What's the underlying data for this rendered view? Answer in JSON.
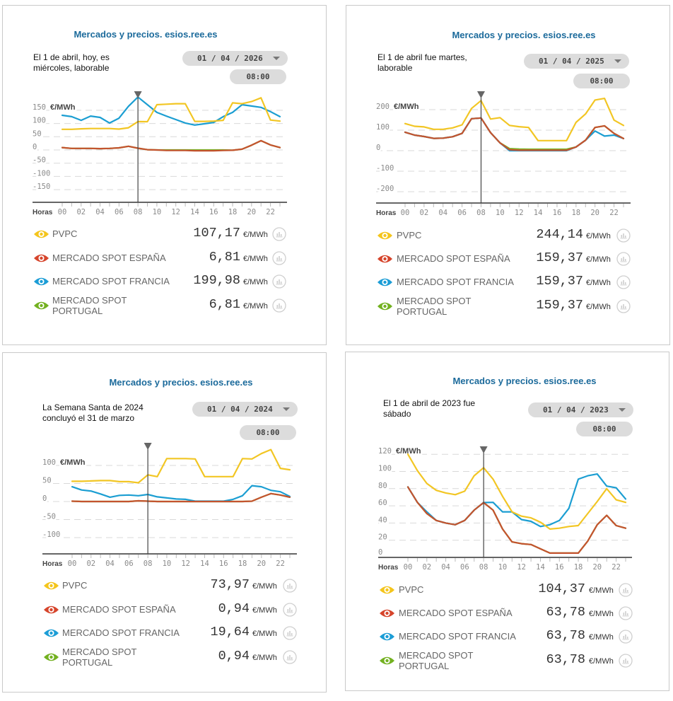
{
  "panels": [
    {
      "title": "Mercados y precios. esios.ree.es",
      "description_lines": [
        "El 1 de abril, hoy, es",
        "miércoles, laborable"
      ],
      "date_select": {
        "value": "01 / 04 / 2026",
        "icon": "chevron-down-icon"
      },
      "time_select": {
        "value": "08:00"
      },
      "legend": [
        {
          "name": "PVPC",
          "value": "107,17",
          "unit": "€/MWh",
          "color": "#f4c51c"
        },
        {
          "name": "MERCADO SPOT ESPAÑA",
          "value": "6,81",
          "unit": "€/MWh",
          "color": "#d6452c"
        },
        {
          "name": "MERCADO SPOT FRANCIA",
          "value": "199,98",
          "unit": "€/MWh",
          "color": "#1c9dd6"
        },
        {
          "name": "MERCADO SPOT PORTUGAL",
          "value": "6,81",
          "unit": "€/MWh",
          "color": "#73b120"
        }
      ]
    },
    {
      "title": "Mercados y precios. esios.ree.es",
      "description_lines": [
        "El 1 de abril fue martes,",
        "laborable"
      ],
      "date_select": {
        "value": "01 / 04 / 2025",
        "icon": "chevron-down-icon"
      },
      "time_select": {
        "value": "08:00"
      },
      "legend": [
        {
          "name": "PVPC",
          "value": "244,14",
          "unit": "€/MWh",
          "color": "#f4c51c"
        },
        {
          "name": "MERCADO SPOT ESPAÑA",
          "value": "159,37",
          "unit": "€/MWh",
          "color": "#d6452c"
        },
        {
          "name": "MERCADO SPOT FRANCIA",
          "value": "159,37",
          "unit": "€/MWh",
          "color": "#1c9dd6"
        },
        {
          "name": "MERCADO SPOT PORTUGAL",
          "value": "159,37",
          "unit": "€/MWh",
          "color": "#73b120"
        }
      ]
    },
    {
      "title": "Mercados y precios. esios.ree.es",
      "description_lines": [
        "La Semana Santa de 2024",
        "concluyó el 31 de marzo"
      ],
      "date_select": {
        "value": "01 / 04 / 2024",
        "icon": "chevron-down-icon"
      },
      "time_select": {
        "value": "08:00"
      },
      "legend": [
        {
          "name": "PVPC",
          "value": "73,97",
          "unit": "€/MWh",
          "color": "#f4c51c"
        },
        {
          "name": "MERCADO SPOT ESPAÑA",
          "value": "0,94",
          "unit": "€/MWh",
          "color": "#d6452c"
        },
        {
          "name": "MERCADO SPOT FRANCIA",
          "value": "19,64",
          "unit": "€/MWh",
          "color": "#1c9dd6"
        },
        {
          "name": "MERCADO SPOT PORTUGAL",
          "value": "0,94",
          "unit": "€/MWh",
          "color": "#73b120"
        }
      ]
    },
    {
      "title": "Mercados y precios. esios.ree.es",
      "description_lines": [
        "El 1 de abril de 2023 fue",
        "sábado"
      ],
      "date_select": {
        "value": "01 / 04 / 2023",
        "icon": "chevron-down-icon"
      },
      "time_select": {
        "value": "08:00"
      },
      "legend": [
        {
          "name": "PVPC",
          "value": "104,37",
          "unit": "€/MWh",
          "color": "#f4c51c"
        },
        {
          "name": "MERCADO SPOT ESPAÑA",
          "value": "63,78",
          "unit": "€/MWh",
          "color": "#d6452c"
        },
        {
          "name": "MERCADO SPOT FRANCIA",
          "value": "63,78",
          "unit": "€/MWh",
          "color": "#1c9dd6"
        },
        {
          "name": "MERCADO SPOT PORTUGAL",
          "value": "63,78",
          "unit": "€/MWh",
          "color": "#73b120"
        }
      ]
    }
  ],
  "chart_data": [
    {
      "type": "line",
      "title": "Mercados y precios. esios.ree.es",
      "subtitle": "01 / 04 / 2026",
      "xlabel": "Horas",
      "ylabel": "€/MWh",
      "x": [
        0,
        1,
        2,
        3,
        4,
        5,
        6,
        7,
        8,
        9,
        10,
        11,
        12,
        13,
        14,
        15,
        16,
        17,
        18,
        19,
        20,
        21,
        22,
        23
      ],
      "xtick_labels": [
        "00",
        "02",
        "04",
        "06",
        "08",
        "10",
        "12",
        "14",
        "16",
        "18",
        "20",
        "22"
      ],
      "yticks": [
        150,
        100,
        50,
        0,
        -50,
        -100,
        -150
      ],
      "ylim": [
        -150,
        200
      ],
      "grid": true,
      "selected_hour": 8,
      "legend_position": "bottom",
      "series": [
        {
          "name": "PVPC",
          "color": "#f2c624",
          "values": [
            78,
            78,
            80,
            81,
            81,
            81,
            79,
            84,
            107.17,
            107,
            171,
            173,
            175,
            175,
            108,
            108,
            109,
            112,
            178,
            175,
            183,
            197,
            113,
            109
          ]
        },
        {
          "name": "MERCADO SPOT ESPAÑA",
          "color": "#c4532f",
          "values": [
            9,
            6,
            6,
            6,
            5,
            6,
            8,
            14,
            6.81,
            1,
            0,
            -2,
            -2,
            -2,
            -3,
            -3,
            -3,
            -2,
            -1,
            3,
            18,
            35,
            19,
            9
          ]
        },
        {
          "name": "MERCADO SPOT FRANCIA",
          "color": "#1b9ed2",
          "values": [
            131,
            126,
            112,
            128,
            123,
            102,
            120,
            165,
            199.98,
            171,
            142,
            128,
            115,
            102,
            94,
            99,
            104,
            126,
            142,
            171,
            166,
            161,
            145,
            126
          ]
        },
        {
          "name": "MERCADO SPOT PORTUGAL",
          "color": "#7ab52a",
          "values": [
            9,
            6,
            6,
            6,
            5,
            6,
            8,
            14,
            6.81,
            1,
            0,
            0,
            0,
            0,
            0,
            0,
            0,
            0,
            -1,
            3,
            18,
            35,
            19,
            9
          ]
        }
      ]
    },
    {
      "type": "line",
      "title": "Mercados y precios. esios.ree.es",
      "subtitle": "01 / 04 / 2025",
      "xlabel": "Horas",
      "ylabel": "€/MWh",
      "x": [
        0,
        1,
        2,
        3,
        4,
        5,
        6,
        7,
        8,
        9,
        10,
        11,
        12,
        13,
        14,
        15,
        16,
        17,
        18,
        19,
        20,
        21,
        22,
        23
      ],
      "xtick_labels": [
        "00",
        "02",
        "04",
        "06",
        "08",
        "10",
        "12",
        "14",
        "16",
        "18",
        "20",
        "22"
      ],
      "yticks": [
        200,
        100,
        0,
        -100,
        -200
      ],
      "ylim": [
        -200,
        260
      ],
      "grid": true,
      "selected_hour": 8,
      "legend_position": "bottom",
      "series": [
        {
          "name": "PVPC",
          "color": "#f2c624",
          "values": [
            132,
            119,
            116,
            104,
            104,
            111,
            126,
            206,
            244.14,
            154,
            161,
            123,
            117,
            113,
            49,
            49,
            49,
            49,
            138,
            179,
            247,
            255,
            149,
            123
          ]
        },
        {
          "name": "MERCADO SPOT ESPAÑA",
          "color": "#c4532f",
          "values": [
            90,
            76,
            69,
            60,
            61,
            68,
            84,
            156,
            159.37,
            88,
            38,
            5,
            2,
            2,
            2,
            2,
            2,
            2,
            18,
            51,
            113,
            121,
            84,
            59
          ]
        },
        {
          "name": "MERCADO SPOT FRANCIA",
          "color": "#1b9ed2",
          "values": [
            90,
            76,
            69,
            60,
            61,
            68,
            84,
            156,
            159.37,
            88,
            38,
            0,
            0,
            0,
            0,
            0,
            0,
            0,
            18,
            51,
            96,
            71,
            76,
            59
          ]
        },
        {
          "name": "MERCADO SPOT PORTUGAL",
          "color": "#7ab52a",
          "values": [
            90,
            76,
            69,
            60,
            61,
            68,
            84,
            156,
            159.37,
            88,
            38,
            10,
            8,
            7,
            7,
            7,
            7,
            7,
            18,
            51,
            113,
            121,
            84,
            59
          ]
        }
      ]
    },
    {
      "type": "line",
      "title": "Mercados y precios. esios.ree.es",
      "subtitle": "01 / 04 / 2024",
      "xlabel": "Horas",
      "ylabel": "€/MWh",
      "x": [
        0,
        1,
        2,
        3,
        4,
        5,
        6,
        7,
        8,
        9,
        10,
        11,
        12,
        13,
        14,
        15,
        16,
        17,
        18,
        19,
        20,
        21,
        22,
        23
      ],
      "xtick_labels": [
        "00",
        "02",
        "04",
        "06",
        "08",
        "10",
        "12",
        "14",
        "16",
        "18",
        "20",
        "22"
      ],
      "yticks": [
        100,
        50,
        0,
        -50,
        -100
      ],
      "ylim": [
        -100,
        150
      ],
      "grid": true,
      "selected_hour": 8,
      "legend_position": "bottom",
      "series": [
        {
          "name": "PVPC",
          "color": "#f2c624",
          "values": [
            56,
            56,
            57,
            58,
            58,
            55,
            55,
            52,
            73.97,
            69,
            119,
            119,
            119,
            118,
            69,
            69,
            69,
            69,
            119,
            118,
            133,
            144,
            92,
            88
          ]
        },
        {
          "name": "MERCADO SPOT ESPAÑA",
          "color": "#c4532f",
          "values": [
            1,
            0,
            0,
            0,
            0,
            0,
            0,
            2,
            0.94,
            0,
            0,
            0,
            0,
            0,
            0,
            0,
            0,
            0,
            0,
            1,
            12,
            22,
            18,
            12
          ]
        },
        {
          "name": "MERCADO SPOT FRANCIA",
          "color": "#1b9ed2",
          "values": [
            41,
            32,
            29,
            21,
            12,
            17,
            18,
            16,
            19.64,
            13,
            10,
            7,
            6,
            1,
            1,
            1,
            1,
            6,
            16,
            44,
            41,
            31,
            27,
            14
          ]
        },
        {
          "name": "MERCADO SPOT PORTUGAL",
          "color": "#7ab52a",
          "values": [
            1,
            0,
            0,
            0,
            0,
            0,
            0,
            2,
            0.94,
            0,
            0,
            0,
            0,
            0,
            0,
            0,
            0,
            0,
            0,
            1,
            12,
            22,
            18,
            12
          ]
        }
      ]
    },
    {
      "type": "line",
      "title": "Mercados y precios. esios.ree.es",
      "subtitle": "01 / 04 / 2023",
      "xlabel": "Horas",
      "ylabel": "€/MWh",
      "x": [
        0,
        1,
        2,
        3,
        4,
        5,
        6,
        7,
        8,
        9,
        10,
        11,
        12,
        13,
        14,
        15,
        16,
        17,
        18,
        19,
        20,
        21,
        22,
        23
      ],
      "xtick_labels": [
        "00",
        "02",
        "04",
        "06",
        "08",
        "10",
        "12",
        "14",
        "16",
        "18",
        "20",
        "22"
      ],
      "yticks": [
        120,
        100,
        80,
        60,
        40,
        20,
        0
      ],
      "ylim": [
        0,
        120
      ],
      "grid": true,
      "selected_hour": 8,
      "legend_position": "bottom",
      "series": [
        {
          "name": "PVPC",
          "color": "#f2c624",
          "values": [
            120,
            101,
            86,
            78,
            75,
            73,
            77,
            95,
            104.37,
            91,
            71,
            53,
            48,
            46,
            41,
            33,
            34,
            36,
            37,
            51,
            65,
            80,
            67,
            64
          ]
        },
        {
          "name": "MERCADO SPOT ESPAÑA",
          "color": "#c4532f",
          "values": [
            82,
            64,
            51,
            43,
            40,
            38,
            43,
            55,
            63.78,
            55,
            33,
            18,
            16,
            15,
            10,
            5,
            5,
            5,
            5,
            19,
            38,
            49,
            37,
            34
          ]
        },
        {
          "name": "MERCADO SPOT FRANCIA",
          "color": "#1b9ed2",
          "values": [
            82,
            64,
            53,
            43,
            40,
            38,
            43,
            55,
            63.78,
            64,
            53,
            53,
            44,
            42,
            36,
            38,
            43,
            57,
            91,
            95,
            97,
            83,
            81,
            68
          ]
        },
        {
          "name": "MERCADO SPOT PORTUGAL",
          "color": "#7ab52a",
          "values": [
            82,
            64,
            51,
            43,
            40,
            38,
            43,
            55,
            63.78,
            55,
            33,
            18,
            16,
            15,
            10,
            5,
            5,
            5,
            5,
            19,
            38,
            49,
            37,
            34
          ]
        }
      ]
    }
  ]
}
